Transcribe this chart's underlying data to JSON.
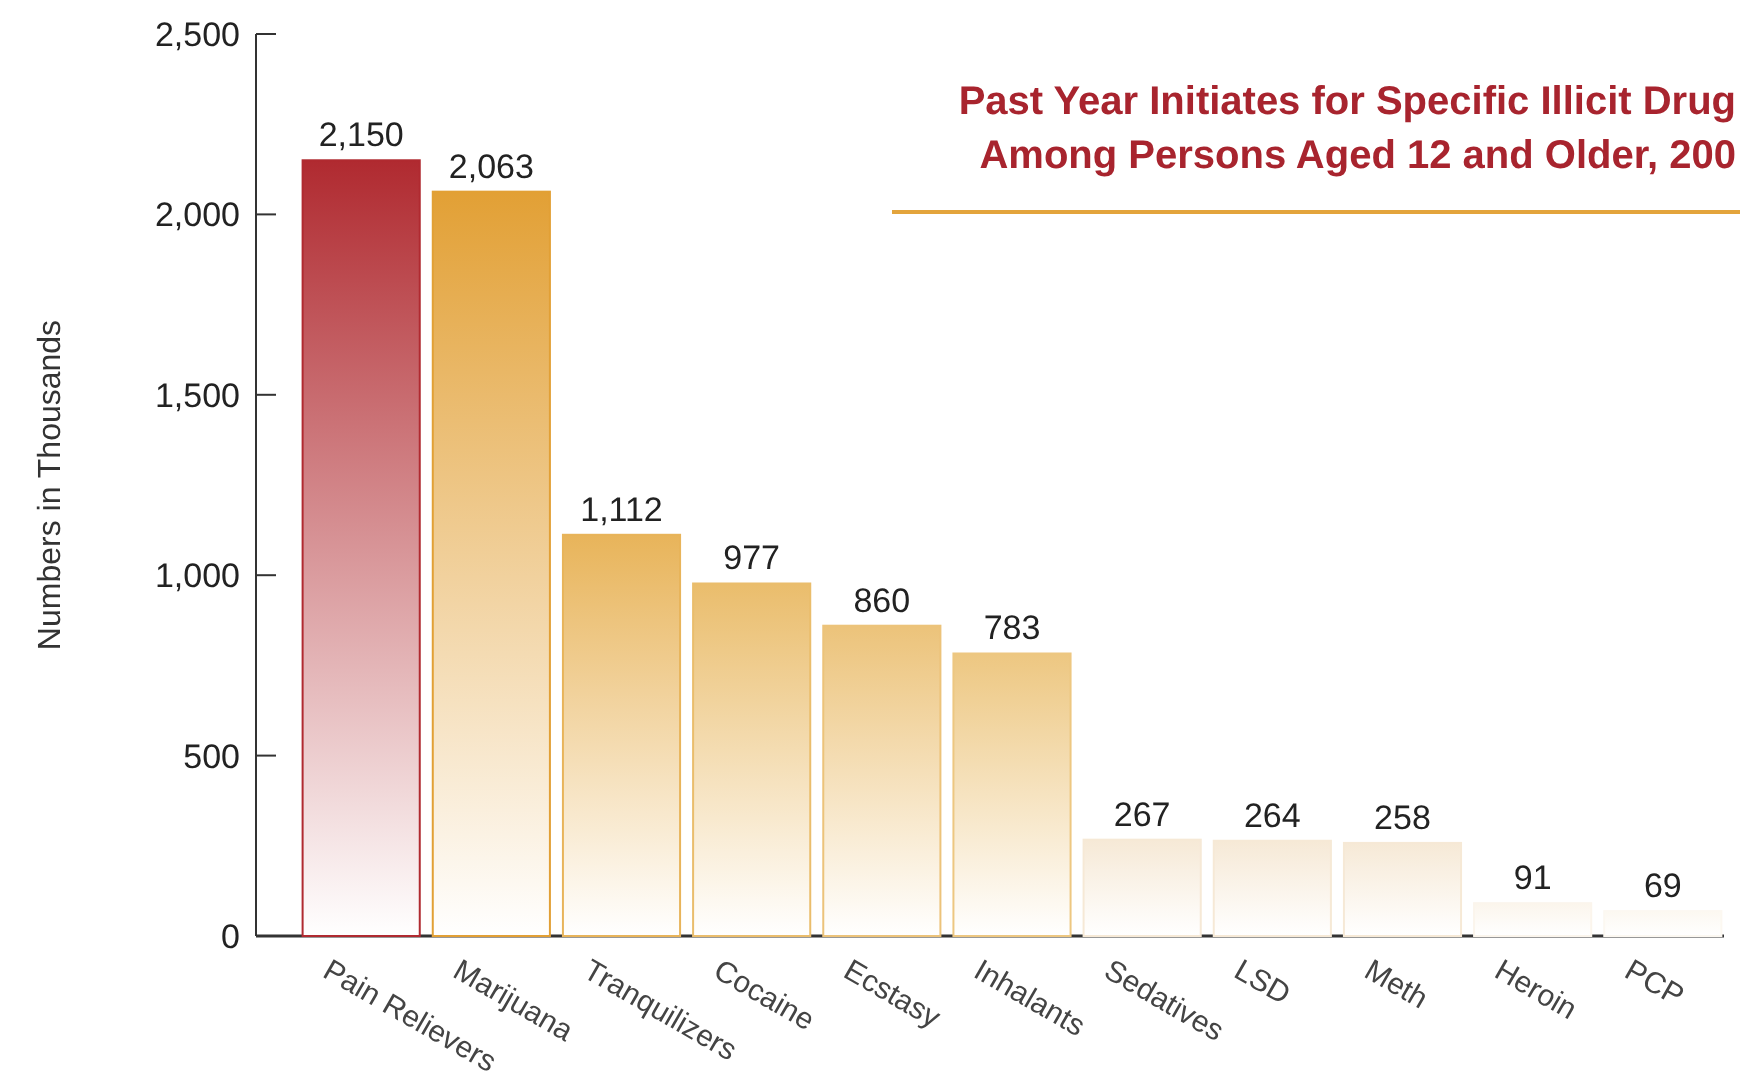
{
  "chart_data": {
    "type": "bar",
    "title": "Past Year Initiates for Specific Illicit Drug\nAmong Persons Aged 12 and Older, 200",
    "ylabel": "Numbers in Thousands",
    "categories": [
      "Pain Relievers",
      "Marijuana",
      "Tranquilizers",
      "Cocaine",
      "Ecstasy",
      "Inhalants",
      "Sedatives",
      "LSD",
      "Meth",
      "Heroin",
      "PCP"
    ],
    "values": [
      2150,
      2063,
      1112,
      977,
      860,
      783,
      267,
      264,
      258,
      91,
      69
    ],
    "colors": [
      "#b02a30",
      "#e2a035",
      "#e8b45a",
      "#eabd6c",
      "#ecc37a",
      "#edc781",
      "#f6e9d6",
      "#f6e9d6",
      "#f6e9d6",
      "#fbf5ec",
      "#fcf8f1"
    ],
    "value_labels": [
      "2,150",
      "2,063",
      "1,112",
      "977",
      "860",
      "783",
      "267",
      "264",
      "258",
      "91",
      "69"
    ],
    "ylim": [
      0,
      2500
    ],
    "yticks": [
      {
        "value": 0,
        "label": "0"
      },
      {
        "value": 500,
        "label": "500"
      },
      {
        "value": 1000,
        "label": "1,000"
      },
      {
        "value": 1500,
        "label": "1,500"
      },
      {
        "value": 2000,
        "label": "2,000"
      },
      {
        "value": 2500,
        "label": "2,500"
      }
    ]
  }
}
